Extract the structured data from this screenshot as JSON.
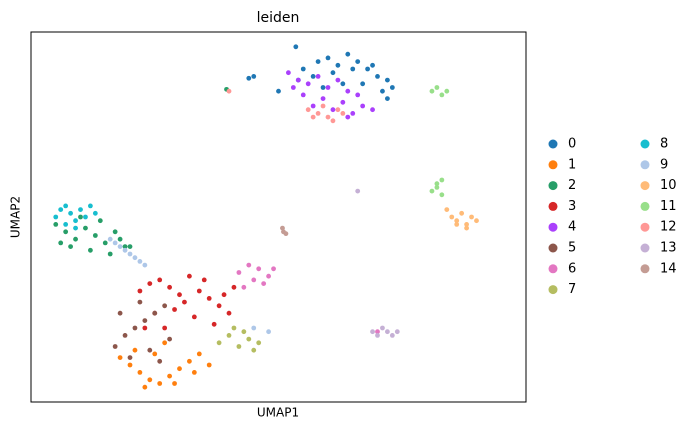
{
  "chart_data": {
    "type": "scatter",
    "title": "leiden",
    "x_label": "UMAP1",
    "y_label": "UMAP2",
    "xlim": [
      0,
      100
    ],
    "ylim": [
      0,
      100
    ],
    "series": [
      {
        "name": "0",
        "color": "#1f77b4",
        "x": [
          55,
          58,
          60,
          62,
          64,
          66,
          68,
          70,
          72,
          57,
          61,
          65,
          69,
          63,
          67,
          59,
          71,
          73,
          54,
          50,
          45,
          44,
          53.5,
          72
        ],
        "y": [
          90,
          92,
          93,
          91,
          94,
          92,
          90,
          88,
          87,
          88,
          89,
          90,
          91,
          86,
          86,
          85,
          84,
          85,
          87,
          84,
          88,
          87.5,
          96,
          82
        ]
      },
      {
        "name": "1",
        "color": "#ff7f0e",
        "x": [
          18,
          20,
          22,
          24,
          26,
          28,
          30,
          32,
          34,
          36,
          21,
          25,
          29,
          33,
          27,
          23
        ],
        "y": [
          12,
          10,
          8,
          6,
          5,
          7,
          9,
          11,
          13,
          10,
          14,
          13,
          5,
          8,
          16,
          4
        ]
      },
      {
        "name": "2",
        "color": "#279e68",
        "x": [
          5,
          7,
          9,
          11,
          13,
          15,
          17,
          19,
          8,
          12,
          16,
          20,
          10,
          14,
          18,
          6,
          39.5
        ],
        "y": [
          48,
          46,
          44,
          47,
          45,
          43,
          46,
          42,
          42,
          41,
          40,
          42,
          50,
          49,
          44,
          43,
          84.5
        ]
      },
      {
        "name": "3",
        "color": "#d62728",
        "x": [
          22,
          24,
          26,
          28,
          30,
          32,
          34,
          36,
          38,
          40,
          25,
          29,
          33,
          37,
          27,
          31,
          35,
          23,
          39,
          41
        ],
        "y": [
          30,
          32,
          33,
          31,
          29,
          34,
          30,
          28,
          26,
          24,
          24,
          25,
          23,
          21,
          20,
          27,
          33,
          20,
          29,
          31
        ]
      },
      {
        "name": "4",
        "color": "#aa40fc",
        "x": [
          52,
          54,
          56,
          58,
          60,
          62,
          64,
          66,
          55,
          59,
          63,
          67,
          57,
          61,
          65,
          53,
          69,
          64
        ],
        "y": [
          89,
          87,
          86,
          88,
          85,
          87,
          84,
          83,
          83,
          82,
          81,
          80,
          80,
          79,
          78,
          85,
          79,
          77
        ]
      },
      {
        "name": "5",
        "color": "#8c564b",
        "x": [
          17,
          19,
          21,
          23,
          25,
          27,
          20,
          24,
          28,
          18,
          22,
          26
        ],
        "y": [
          15,
          18,
          20,
          22,
          24,
          26,
          12,
          14,
          17,
          24,
          27,
          11
        ]
      },
      {
        "name": "6",
        "color": "#e377c2",
        "x": [
          42,
          44,
          46,
          48,
          43,
          45,
          47,
          49,
          70
        ],
        "y": [
          35,
          37,
          36,
          34,
          31,
          33,
          32,
          36,
          19
        ]
      },
      {
        "name": "7",
        "color": "#b5bd61",
        "x": [
          38,
          40,
          42,
          44,
          46,
          41,
          43,
          45
        ],
        "y": [
          16,
          18,
          15,
          17,
          16,
          20,
          19,
          14
        ]
      },
      {
        "name": "8",
        "color": "#17becf",
        "x": [
          5,
          6,
          7,
          8,
          9,
          10,
          11,
          12,
          7,
          9,
          13
        ],
        "y": [
          50,
          52,
          53,
          51,
          49,
          52,
          50,
          53,
          48,
          47,
          51
        ]
      },
      {
        "name": "9",
        "color": "#aec7e8",
        "x": [
          16,
          17,
          18,
          19,
          20,
          21,
          22,
          23,
          45,
          48
        ],
        "y": [
          44,
          43,
          42,
          41,
          40,
          39,
          38,
          37,
          20,
          19
        ]
      },
      {
        "name": "10",
        "color": "#ffbb78",
        "x": [
          84,
          85,
          86,
          87,
          88,
          89,
          90,
          86,
          88
        ],
        "y": [
          52,
          50,
          49,
          51,
          48,
          50,
          49,
          48,
          47
        ]
      },
      {
        "name": "11",
        "color": "#98df8a",
        "x": [
          81,
          82,
          83,
          84,
          82,
          83,
          81,
          82,
          83
        ],
        "y": [
          84,
          85,
          83,
          84,
          58,
          60,
          57,
          59,
          56
        ]
      },
      {
        "name": "12",
        "color": "#ff9896",
        "x": [
          56,
          58,
          60,
          62,
          57,
          61,
          59,
          63,
          40
        ],
        "y": [
          79,
          78,
          77,
          79,
          77,
          76,
          80,
          78,
          84
        ]
      },
      {
        "name": "13",
        "color": "#c5b0d5",
        "x": [
          69,
          70,
          71,
          72,
          73,
          74,
          66
        ],
        "y": [
          19,
          18,
          20,
          19,
          18,
          19,
          57
        ]
      },
      {
        "name": "14",
        "color": "#c49c94",
        "x": [
          51,
          51.5,
          50.8
        ],
        "y": [
          46,
          45.5,
          47
        ]
      }
    ]
  }
}
